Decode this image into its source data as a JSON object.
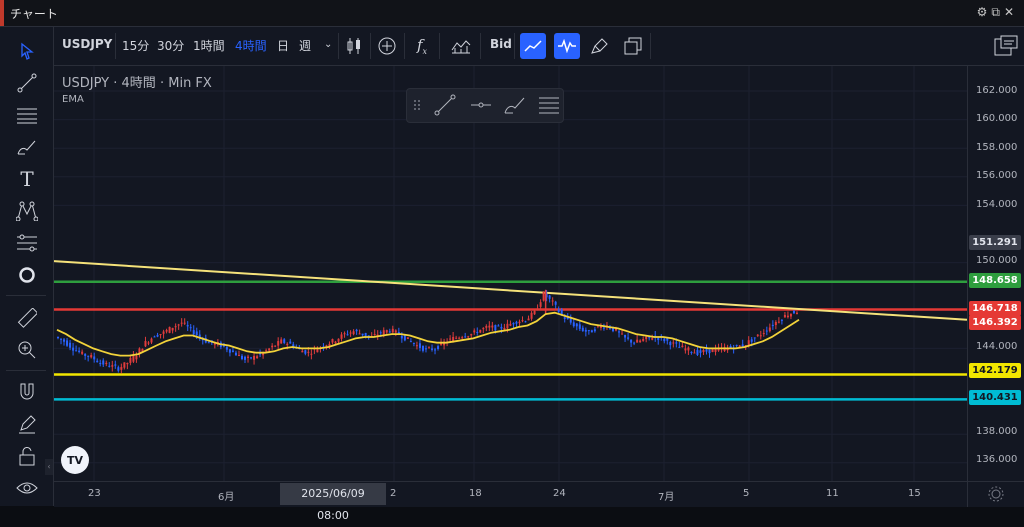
{
  "window": {
    "title": "チャート"
  },
  "toolbar": {
    "symbol": "USDJPY",
    "intervals": [
      "15分",
      "30分",
      "1時間",
      "4時間",
      "日",
      "週"
    ],
    "active_interval": "4時間",
    "bid_label": "Bid"
  },
  "legend": {
    "symbol": "USDJPY",
    "sep1": "·",
    "interval": "4時間",
    "sep2": "·",
    "source": "Min FX",
    "indicator": "EMA"
  },
  "logo": "TV",
  "price_axis": {
    "ticks": [
      "162.000",
      "160.000",
      "158.000",
      "156.000",
      "154.000",
      "150.000",
      "144.000",
      "138.000",
      "136.000"
    ]
  },
  "price_badges": {
    "current": "151.291",
    "green_line": "148.658",
    "red_line": "146.718",
    "last_price": "146.392",
    "yellow_line": "142.179",
    "cyan_line": "140.431"
  },
  "time_axis": {
    "labels": [
      "23",
      "6月",
      "2",
      "18",
      "24",
      "7月",
      "5",
      "11",
      "15"
    ],
    "crosshair": "2025/06/09　08:00"
  },
  "colors": {
    "background": "#131722",
    "up_candle": "#e03c3c",
    "down_candle": "#2962ff",
    "ema": "#f2d33a",
    "trendline": "#f5e27a",
    "green_line": "#2e9e3e",
    "red_line": "#e53935",
    "yellow_line": "#f2e600",
    "cyan_line": "#00bcd4",
    "active_button": "#2962ff"
  },
  "chart_data": {
    "type": "candlestick",
    "ylim": [
      135,
      163
    ],
    "y_ticks": [
      162,
      160,
      158,
      156,
      154,
      150,
      144,
      138,
      136
    ],
    "x_labels": [
      "23",
      "6月",
      "2",
      "18",
      "24",
      "7月",
      "5",
      "11",
      "15"
    ],
    "horizontal_lines": [
      {
        "value": 148.658,
        "color": "#2e9e3e"
      },
      {
        "value": 146.718,
        "color": "#e53935"
      },
      {
        "value": 142.179,
        "color": "#f2e600"
      },
      {
        "value": 140.431,
        "color": "#00bcd4"
      }
    ],
    "trendline": {
      "from": 150.1,
      "to": 146.0
    },
    "series_shape": [
      144.8,
      144.5,
      144.0,
      143.6,
      143.4,
      143.0,
      142.8,
      142.6,
      143.0,
      143.6,
      144.4,
      144.9,
      145.1,
      145.5,
      145.8,
      145.3,
      144.8,
      144.4,
      144.3,
      144.0,
      143.6,
      143.2,
      143.4,
      143.7,
      144.1,
      144.5,
      144.3,
      143.9,
      143.7,
      144.0,
      144.3,
      144.6,
      145.0,
      145.2,
      145.0,
      144.8,
      145.1,
      145.3,
      145.0,
      144.6,
      144.2,
      143.9,
      144.0,
      144.4,
      144.7,
      144.9,
      145.0,
      145.3,
      145.5,
      145.4,
      145.6,
      145.9,
      146.0,
      146.5,
      147.8,
      147.2,
      146.3,
      145.8,
      145.4,
      145.1,
      145.5,
      145.6,
      145.2,
      144.7,
      144.4,
      144.6,
      144.8,
      144.7,
      144.4,
      144.1,
      143.9,
      143.7,
      143.8,
      143.9,
      144.0,
      144.1,
      144.2,
      144.6,
      145.0,
      145.5,
      146.0,
      146.4,
      146.6
    ],
    "ema_shape": [
      145.3,
      145.0,
      144.6,
      144.3,
      144.0,
      143.8,
      143.6,
      143.5,
      143.5,
      143.6,
      143.9,
      144.2,
      144.5,
      144.7,
      144.9,
      144.9,
      144.7,
      144.5,
      144.3,
      144.2,
      144.0,
      143.8,
      143.7,
      143.7,
      143.8,
      144.0,
      144.1,
      144.0,
      144.0,
      144.0,
      144.1,
      144.3,
      144.5,
      144.7,
      144.8,
      144.8,
      144.9,
      145.0,
      145.0,
      144.9,
      144.7,
      144.5,
      144.4,
      144.4,
      144.5,
      144.6,
      144.7,
      144.9,
      145.1,
      145.2,
      145.3,
      145.5,
      145.6,
      145.9,
      146.4,
      146.5,
      146.3,
      146.1,
      145.9,
      145.7,
      145.6,
      145.5,
      145.4,
      145.2,
      145.0,
      144.9,
      144.8,
      144.8,
      144.7,
      144.5,
      144.3,
      144.1,
      144.0,
      144.0,
      144.0,
      144.0,
      144.1,
      144.3,
      144.5,
      144.8,
      145.2,
      145.6,
      146.0
    ]
  }
}
